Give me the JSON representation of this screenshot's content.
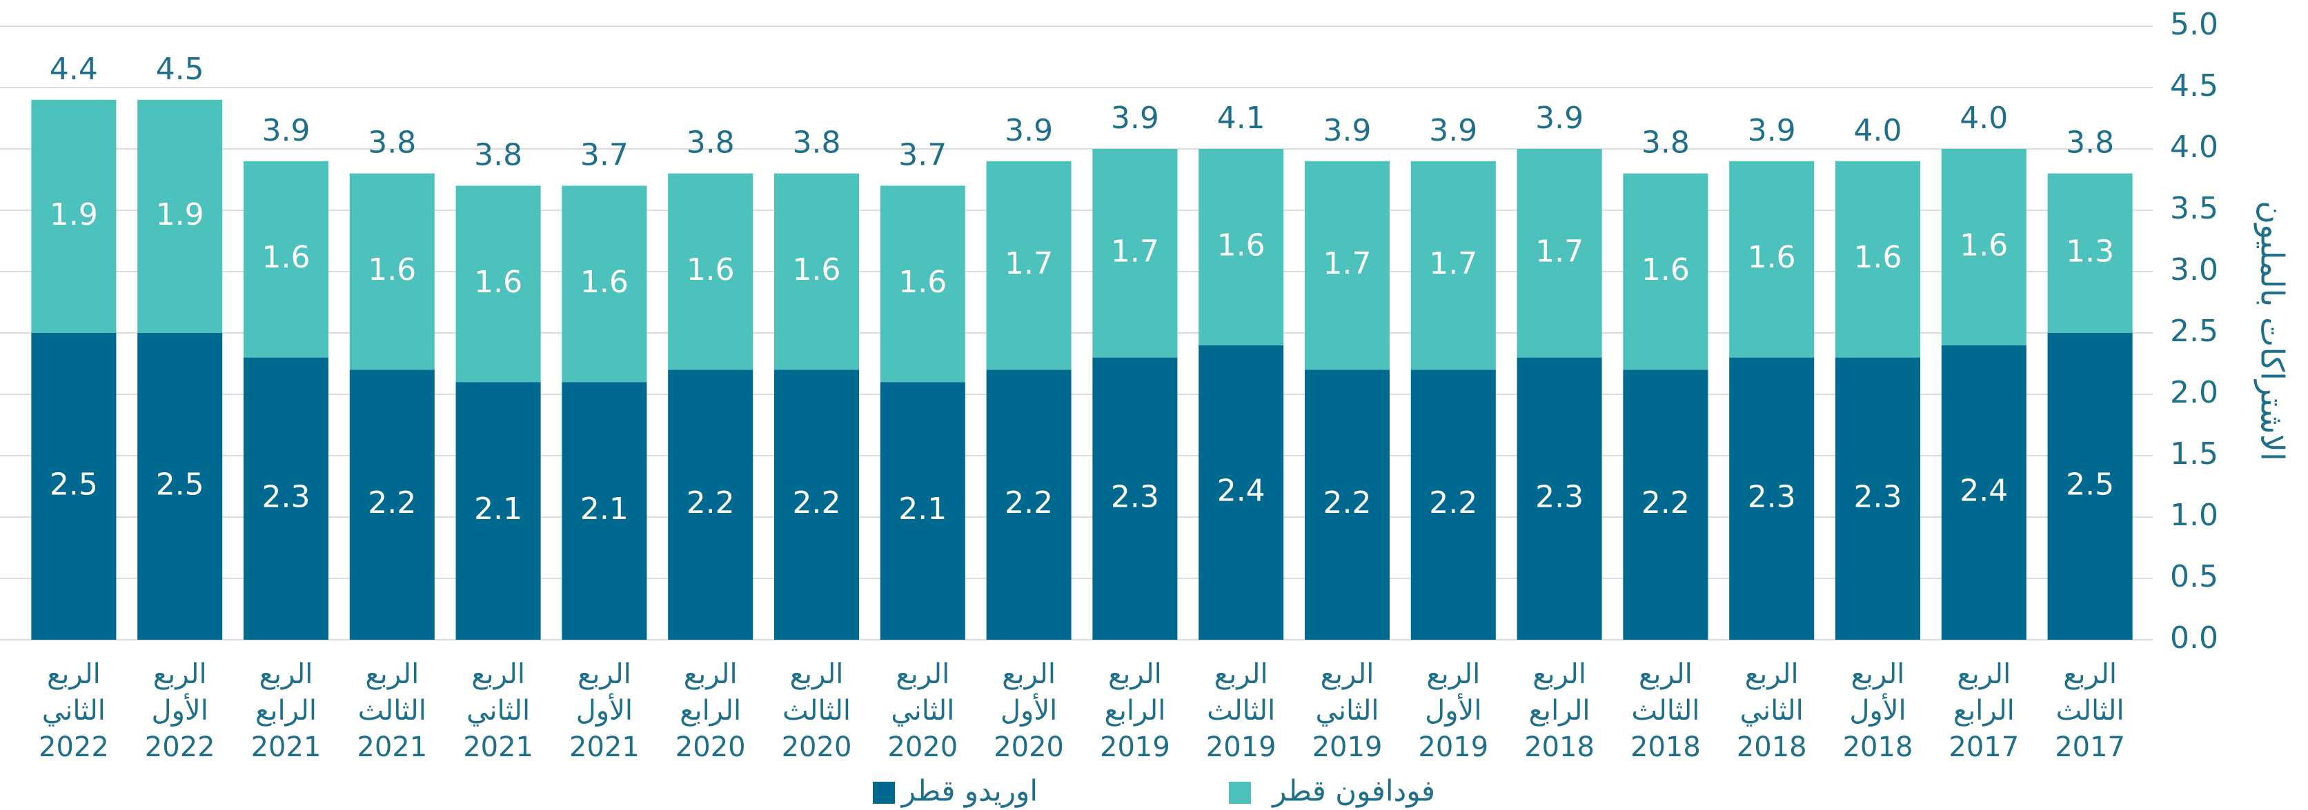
{
  "chart_data": {
    "type": "stacked_bar",
    "x_direction": "rtl",
    "y_axis_label": "الاشتراكات بالمليون",
    "categories": [
      "الربع الثالث 2017",
      "الربع الرابع 2017",
      "الربع الأول 2018",
      "الربع الثاني 2018",
      "الربع الثالث 2018",
      "الربع الرابع 2018",
      "الربع الأول 2019",
      "الربع الثاني 2019",
      "الربع الثالث 2019",
      "الربع الرابع 2019",
      "الربع الأول 2020",
      "الربع الثاني 2020",
      "الربع الثالث 2020",
      "الربع الرابع 2020",
      "الربع الأول 2021",
      "الربع الثاني 2021",
      "الربع الثالث 2021",
      "الربع الرابع 2021",
      "الربع الأول 2022",
      "الربع الثاني 2022"
    ],
    "series": [
      {
        "name": "اوريدو قطر",
        "color": "#006990",
        "values": [
          2.5,
          2.4,
          2.3,
          2.3,
          2.2,
          2.3,
          2.2,
          2.2,
          2.4,
          2.3,
          2.2,
          2.1,
          2.2,
          2.2,
          2.1,
          2.1,
          2.2,
          2.3,
          2.5,
          2.5
        ]
      },
      {
        "name": "فودافون قطر",
        "color": "#4dc1bb",
        "values": [
          1.3,
          1.6,
          1.6,
          1.6,
          1.6,
          1.7,
          1.7,
          1.7,
          1.6,
          1.7,
          1.7,
          1.6,
          1.6,
          1.6,
          1.6,
          1.6,
          1.6,
          1.6,
          1.9,
          1.9
        ]
      }
    ],
    "totals": [
      3.8,
      4,
      4,
      3.9,
      3.8,
      3.9,
      3.9,
      3.9,
      4.1,
      3.9,
      3.9,
      3.7,
      3.8,
      3.8,
      3.7,
      3.8,
      3.8,
      3.9,
      4.5,
      4.4
    ],
    "total_labels": [
      "3.8",
      "4.0",
      "4.0",
      "3.9",
      "3.8",
      "3.9",
      "3.9",
      "3.9",
      "4.1",
      "3.9",
      "3.9",
      "3.7",
      "3.8",
      "3.8",
      "3.7",
      "3.8",
      "3.8",
      "3.9",
      "4.5",
      "4.4"
    ],
    "ylim": [
      0,
      5
    ],
    "yticks": [
      {
        "value": 0,
        "label": "0.0"
      },
      0.5,
      {
        "value": 1,
        "label": "1.0"
      },
      1.5,
      {
        "value": 2,
        "label": "2.0"
      },
      2.5,
      {
        "value": 3,
        "label": "3.0"
      },
      3.5,
      {
        "value": 4,
        "label": "4.0"
      },
      4.5,
      {
        "value": 5,
        "label": "5.0"
      }
    ],
    "grid": true,
    "legend": "bottom"
  }
}
